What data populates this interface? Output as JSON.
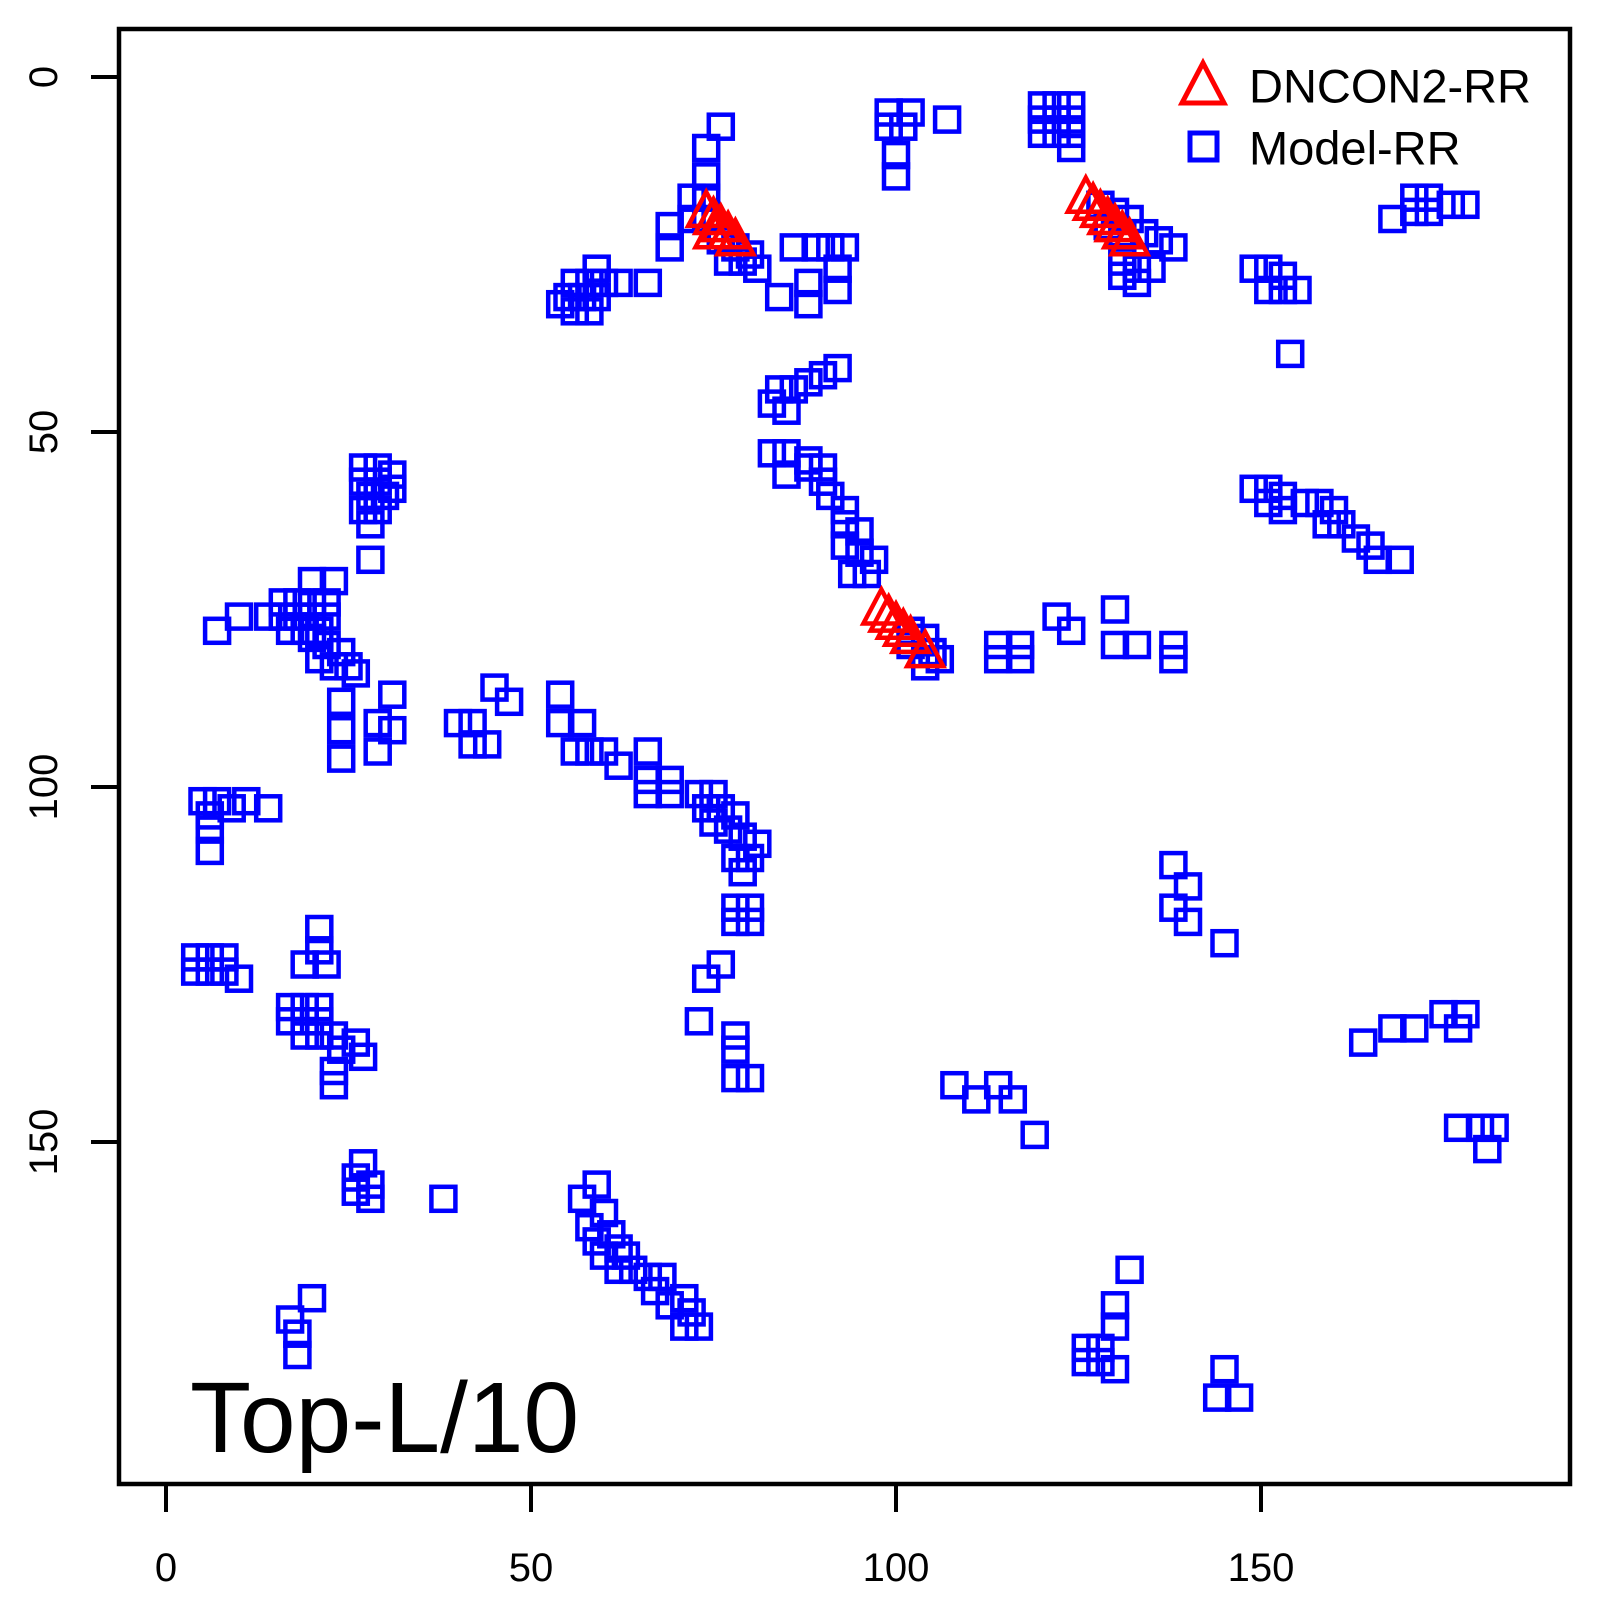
{
  "figure": {
    "background": "#ffffff",
    "border_color": "#000000",
    "annotation": "Top-L/10"
  },
  "legend": {
    "items": [
      {
        "label": "DNCON2-RR",
        "marker": "triangle-open",
        "color": "#ff0000"
      },
      {
        "label": "Model-RR",
        "marker": "square-open",
        "color": "#0000ff"
      }
    ]
  },
  "chart_data": {
    "type": "scatter",
    "title": "",
    "xlabel": "",
    "ylabel": "",
    "grid": false,
    "legend_position": "top-right",
    "annotation": "Top-L/10",
    "x_ticks": [
      0,
      50,
      100,
      150
    ],
    "y_ticks": [
      0,
      50,
      100,
      150
    ],
    "x_tick_labels": [
      "0",
      "50",
      "100",
      "150"
    ],
    "y_tick_labels": [
      "0",
      "50",
      "100",
      "150"
    ],
    "xlim": [
      -7,
      192
    ],
    "ylim": [
      198,
      -7
    ],
    "y_axis_reversed": true,
    "series": [
      {
        "name": "Model-RR",
        "marker": "square-open",
        "color": "#0000ff",
        "points": [
          [
            76,
            7
          ],
          [
            74,
            10
          ],
          [
            74,
            14
          ],
          [
            99,
            5
          ],
          [
            102,
            5
          ],
          [
            99,
            7
          ],
          [
            101,
            7
          ],
          [
            107,
            6
          ],
          [
            100,
            11
          ],
          [
            100,
            14
          ],
          [
            120,
            4
          ],
          [
            122,
            4
          ],
          [
            124,
            4
          ],
          [
            120,
            6
          ],
          [
            122,
            6
          ],
          [
            124,
            6
          ],
          [
            120,
            8
          ],
          [
            122,
            8
          ],
          [
            124,
            8
          ],
          [
            124,
            10
          ],
          [
            168,
            20
          ],
          [
            171,
            17
          ],
          [
            173,
            17
          ],
          [
            171,
            19
          ],
          [
            173,
            19
          ],
          [
            176,
            18
          ],
          [
            178,
            18
          ],
          [
            72,
            17
          ],
          [
            74,
            17
          ],
          [
            72,
            20
          ],
          [
            74,
            20
          ],
          [
            69,
            21
          ],
          [
            69,
            24
          ],
          [
            76,
            23
          ],
          [
            78,
            24
          ],
          [
            80,
            25
          ],
          [
            77,
            26
          ],
          [
            79,
            26
          ],
          [
            81,
            27
          ],
          [
            86,
            24
          ],
          [
            89,
            24
          ],
          [
            91,
            24
          ],
          [
            93,
            24
          ],
          [
            84,
            31
          ],
          [
            88,
            29
          ],
          [
            88,
            32
          ],
          [
            92,
            27
          ],
          [
            92,
            30
          ],
          [
            128,
            18
          ],
          [
            130,
            19
          ],
          [
            132,
            20
          ],
          [
            129,
            21
          ],
          [
            131,
            22
          ],
          [
            134,
            22
          ],
          [
            136,
            23
          ],
          [
            138,
            24
          ],
          [
            131,
            26
          ],
          [
            133,
            27
          ],
          [
            135,
            27
          ],
          [
            131,
            28
          ],
          [
            133,
            29
          ],
          [
            149,
            27
          ],
          [
            151,
            27
          ],
          [
            153,
            28
          ],
          [
            151,
            30
          ],
          [
            153,
            30
          ],
          [
            155,
            30
          ],
          [
            154,
            39
          ],
          [
            59,
            27
          ],
          [
            56,
            29
          ],
          [
            58,
            29
          ],
          [
            60,
            29
          ],
          [
            62,
            29
          ],
          [
            55,
            31
          ],
          [
            57,
            31
          ],
          [
            59,
            31
          ],
          [
            54,
            32
          ],
          [
            56,
            33
          ],
          [
            58,
            33
          ],
          [
            66,
            29
          ],
          [
            84,
            44
          ],
          [
            86,
            44
          ],
          [
            88,
            43
          ],
          [
            90,
            42
          ],
          [
            92,
            41
          ],
          [
            83,
            46
          ],
          [
            85,
            47
          ],
          [
            83,
            53
          ],
          [
            85,
            53
          ],
          [
            88,
            54
          ],
          [
            90,
            55
          ],
          [
            85,
            56
          ],
          [
            88,
            55
          ],
          [
            90,
            57
          ],
          [
            91,
            59
          ],
          [
            93,
            61
          ],
          [
            93,
            63
          ],
          [
            95,
            64
          ],
          [
            93,
            66
          ],
          [
            95,
            67
          ],
          [
            97,
            68
          ],
          [
            94,
            70
          ],
          [
            96,
            70
          ],
          [
            27,
            55
          ],
          [
            29,
            55
          ],
          [
            31,
            56
          ],
          [
            27,
            57
          ],
          [
            29,
            57
          ],
          [
            31,
            58
          ],
          [
            28,
            59
          ],
          [
            30,
            59
          ],
          [
            27,
            61
          ],
          [
            29,
            61
          ],
          [
            28,
            63
          ],
          [
            28,
            68
          ],
          [
            20,
            71
          ],
          [
            23,
            71
          ],
          [
            7,
            78
          ],
          [
            10,
            76
          ],
          [
            14,
            76
          ],
          [
            16,
            74
          ],
          [
            18,
            74
          ],
          [
            20,
            74
          ],
          [
            22,
            74
          ],
          [
            16,
            76
          ],
          [
            18,
            76
          ],
          [
            20,
            76
          ],
          [
            22,
            76
          ],
          [
            17,
            78
          ],
          [
            19,
            78
          ],
          [
            21,
            78
          ],
          [
            20,
            79
          ],
          [
            22,
            80
          ],
          [
            24,
            81
          ],
          [
            21,
            82
          ],
          [
            23,
            83
          ],
          [
            25,
            83
          ],
          [
            26,
            84
          ],
          [
            102,
            78
          ],
          [
            104,
            79
          ],
          [
            102,
            80
          ],
          [
            105,
            81
          ],
          [
            106,
            82
          ],
          [
            104,
            83
          ],
          [
            114,
            80
          ],
          [
            117,
            80
          ],
          [
            114,
            82
          ],
          [
            117,
            82
          ],
          [
            122,
            76
          ],
          [
            124,
            78
          ],
          [
            130,
            75
          ],
          [
            130,
            80
          ],
          [
            133,
            80
          ],
          [
            138,
            80
          ],
          [
            138,
            82
          ],
          [
            149,
            58
          ],
          [
            151,
            58
          ],
          [
            153,
            59
          ],
          [
            151,
            60
          ],
          [
            153,
            61
          ],
          [
            156,
            60
          ],
          [
            158,
            60
          ],
          [
            160,
            61
          ],
          [
            159,
            63
          ],
          [
            161,
            63
          ],
          [
            163,
            65
          ],
          [
            165,
            66
          ],
          [
            166,
            68
          ],
          [
            169,
            68
          ],
          [
            45,
            86
          ],
          [
            47,
            88
          ],
          [
            40,
            91
          ],
          [
            42,
            91
          ],
          [
            42,
            94
          ],
          [
            44,
            94
          ],
          [
            54,
            87
          ],
          [
            54,
            91
          ],
          [
            57,
            91
          ],
          [
            56,
            95
          ],
          [
            58,
            95
          ],
          [
            60,
            95
          ],
          [
            62,
            97
          ],
          [
            66,
            95
          ],
          [
            66,
            99
          ],
          [
            69,
            99
          ],
          [
            66,
            101
          ],
          [
            69,
            101
          ],
          [
            73,
            101
          ],
          [
            75,
            101
          ],
          [
            74,
            103
          ],
          [
            76,
            103
          ],
          [
            78,
            104
          ],
          [
            75,
            105
          ],
          [
            77,
            106
          ],
          [
            79,
            107
          ],
          [
            81,
            108
          ],
          [
            78,
            110
          ],
          [
            80,
            110
          ],
          [
            79,
            112
          ],
          [
            24,
            88
          ],
          [
            24,
            92
          ],
          [
            24,
            96
          ],
          [
            31,
            87
          ],
          [
            29,
            91
          ],
          [
            31,
            92
          ],
          [
            29,
            95
          ],
          [
            5,
            102
          ],
          [
            7,
            102
          ],
          [
            9,
            103
          ],
          [
            6,
            104
          ],
          [
            11,
            102
          ],
          [
            14,
            103
          ],
          [
            6,
            106
          ],
          [
            6,
            109
          ],
          [
            21,
            120
          ],
          [
            21,
            123
          ],
          [
            19,
            125
          ],
          [
            22,
            125
          ],
          [
            4,
            124
          ],
          [
            6,
            124
          ],
          [
            8,
            124
          ],
          [
            4,
            126
          ],
          [
            6,
            126
          ],
          [
            8,
            126
          ],
          [
            10,
            127
          ],
          [
            78,
            117
          ],
          [
            80,
            117
          ],
          [
            78,
            119
          ],
          [
            80,
            119
          ],
          [
            76,
            125
          ],
          [
            74,
            127
          ],
          [
            17,
            131
          ],
          [
            19,
            131
          ],
          [
            21,
            131
          ],
          [
            17,
            133
          ],
          [
            19,
            133
          ],
          [
            21,
            133
          ],
          [
            19,
            135
          ],
          [
            21,
            135
          ],
          [
            23,
            135
          ],
          [
            26,
            136
          ],
          [
            24,
            137
          ],
          [
            27,
            138
          ],
          [
            23,
            140
          ],
          [
            23,
            142
          ],
          [
            138,
            111
          ],
          [
            140,
            114
          ],
          [
            138,
            117
          ],
          [
            140,
            119
          ],
          [
            145,
            122
          ],
          [
            73,
            133
          ],
          [
            78,
            135
          ],
          [
            78,
            137
          ],
          [
            78,
            141
          ],
          [
            80,
            141
          ],
          [
            108,
            142
          ],
          [
            111,
            144
          ],
          [
            114,
            142
          ],
          [
            116,
            144
          ],
          [
            119,
            149
          ],
          [
            164,
            136
          ],
          [
            168,
            134
          ],
          [
            171,
            134
          ],
          [
            175,
            132
          ],
          [
            178,
            132
          ],
          [
            177,
            134
          ],
          [
            177,
            148
          ],
          [
            180,
            148
          ],
          [
            182,
            148
          ],
          [
            181,
            151
          ],
          [
            27,
            153
          ],
          [
            26,
            155
          ],
          [
            28,
            156
          ],
          [
            26,
            157
          ],
          [
            28,
            158
          ],
          [
            38,
            158
          ],
          [
            59,
            156
          ],
          [
            57,
            158
          ],
          [
            60,
            160
          ],
          [
            58,
            162
          ],
          [
            61,
            163
          ],
          [
            59,
            164
          ],
          [
            62,
            165
          ],
          [
            60,
            166
          ],
          [
            63,
            166
          ],
          [
            62,
            168
          ],
          [
            64,
            168
          ],
          [
            66,
            169
          ],
          [
            68,
            169
          ],
          [
            67,
            171
          ],
          [
            69,
            173
          ],
          [
            71,
            172
          ],
          [
            72,
            174
          ],
          [
            71,
            176
          ],
          [
            73,
            176
          ],
          [
            20,
            172
          ],
          [
            17,
            175
          ],
          [
            18,
            177
          ],
          [
            18,
            180
          ],
          [
            132,
            168
          ],
          [
            130,
            173
          ],
          [
            130,
            176
          ],
          [
            126,
            179
          ],
          [
            128,
            179
          ],
          [
            126,
            181
          ],
          [
            128,
            181
          ],
          [
            130,
            182
          ],
          [
            145,
            182
          ],
          [
            144,
            186
          ],
          [
            147,
            186
          ]
        ]
      },
      {
        "name": "DNCON2-RR",
        "marker": "triangle-open",
        "color": "#ff0000",
        "points": [
          [
            74,
            19
          ],
          [
            75,
            20
          ],
          [
            76,
            21
          ],
          [
            75,
            22
          ],
          [
            77,
            22
          ],
          [
            78,
            23
          ],
          [
            126,
            17
          ],
          [
            127,
            18
          ],
          [
            128,
            19
          ],
          [
            129,
            20
          ],
          [
            130,
            21
          ],
          [
            131,
            22
          ],
          [
            132,
            23
          ],
          [
            98,
            75
          ],
          [
            99,
            76
          ],
          [
            100,
            77
          ],
          [
            101,
            78
          ],
          [
            102,
            79
          ],
          [
            104,
            81
          ]
        ]
      }
    ]
  }
}
